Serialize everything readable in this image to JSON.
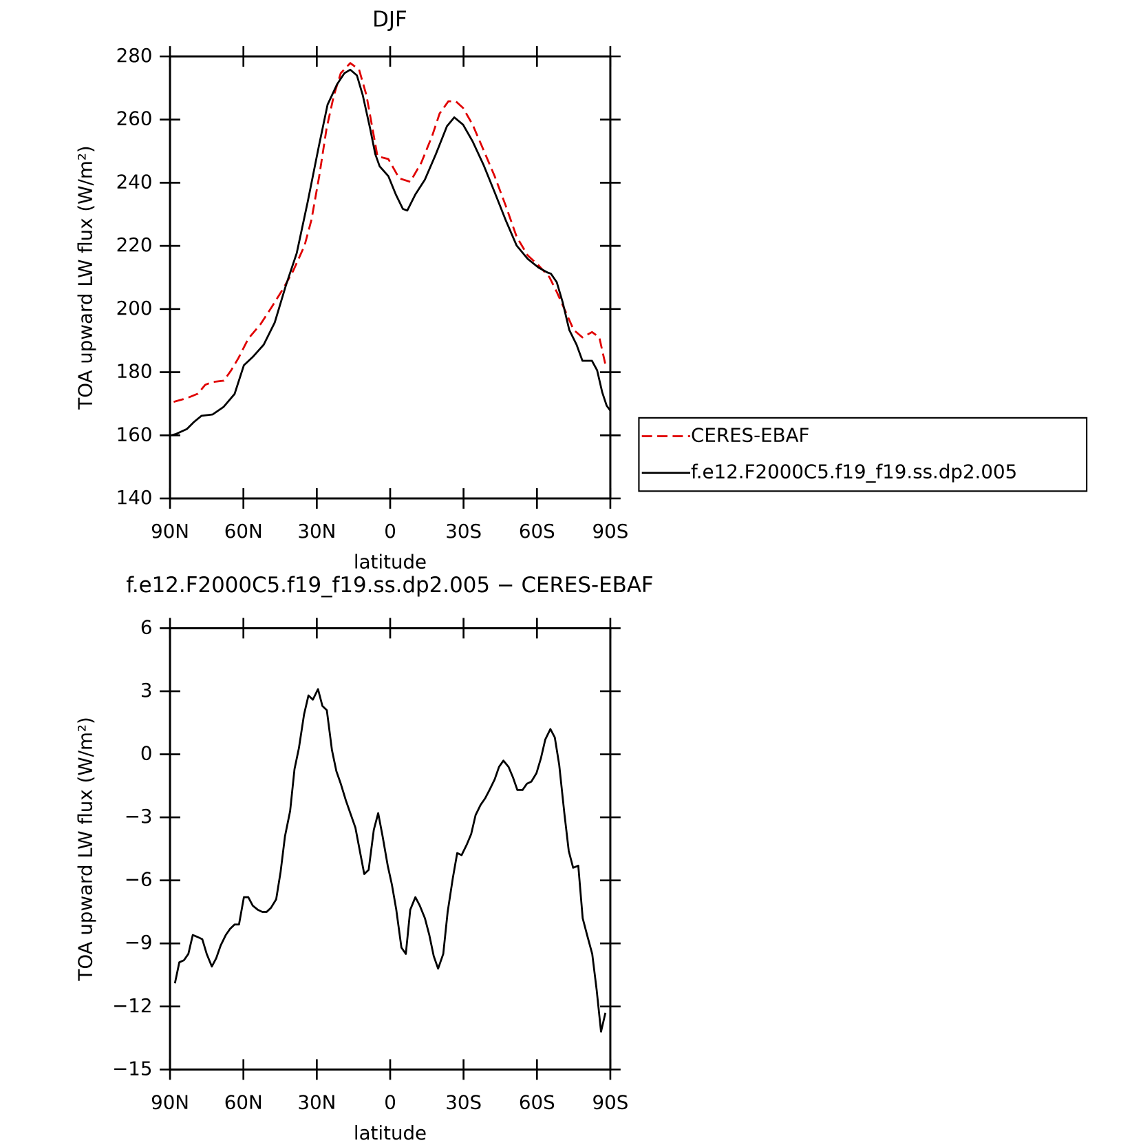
{
  "chart_data": [
    {
      "type": "line",
      "title": "DJF",
      "xlabel": "latitude",
      "ylabel": "TOA upward LW flux (W/m²)",
      "xlim": [
        90,
        -90
      ],
      "ylim": [
        140,
        280
      ],
      "xticks": [
        {
          "value": 90,
          "label": "90N"
        },
        {
          "value": 60,
          "label": "60N"
        },
        {
          "value": 30,
          "label": "30N"
        },
        0,
        {
          "value": -30,
          "label": "30S"
        },
        {
          "value": -60,
          "label": "60S"
        },
        {
          "value": -90,
          "label": "90S"
        }
      ],
      "yticks": [
        140,
        160,
        180,
        200,
        220,
        240,
        260,
        280
      ],
      "legend": "outside-right",
      "series": [
        {
          "name": "CERES-EBAF",
          "color": "#e00000",
          "dash": "dashed",
          "x": [
            88.5,
            83,
            78.6,
            75.6,
            72.6,
            68,
            65,
            62,
            58,
            53,
            48.7,
            44,
            39.7,
            35,
            32.2,
            29,
            26,
            23,
            20.2,
            16.3,
            12.7,
            9.7,
            6.7,
            5.2,
            0.75,
            -3.7,
            -8.2,
            -12.7,
            -17.2,
            -20.2,
            -23.8,
            -26.8,
            -29.8,
            -33.7,
            -38.2,
            -42.7,
            -47.2,
            -51.7,
            -56.2,
            -60.7,
            -65.1,
            -68.1,
            -71.7,
            -75,
            -78.6,
            -82.5,
            -85.5,
            -88.2
          ],
          "values": [
            170.6,
            171.8,
            173.2,
            176,
            176.9,
            177.3,
            180.6,
            184.5,
            190.6,
            195.2,
            200.3,
            206.1,
            212,
            220.1,
            228.2,
            242.1,
            257.2,
            267.7,
            274.7,
            277.9,
            275.8,
            267.7,
            254.9,
            248.4,
            247.5,
            241.4,
            240.3,
            246.3,
            254.9,
            261.9,
            265.8,
            265.8,
            263.7,
            258.4,
            250.3,
            242.1,
            232.8,
            222.9,
            217,
            213.8,
            210.1,
            205.4,
            199.2,
            193.4,
            191,
            192.7,
            191,
            181.7
          ]
        },
        {
          "name": "f.e12.F2000C5.f19_f19.ss.dp2.005",
          "color": "#000000",
          "dash": "solid",
          "x": [
            90,
            87.6,
            83.1,
            80.1,
            77.1,
            72.6,
            68.1,
            63.6,
            59.8,
            56.2,
            51.7,
            47.2,
            42.7,
            38.2,
            33.7,
            29.2,
            25.6,
            21.7,
            18.7,
            16.3,
            13.6,
            11.2,
            8.2,
            6.1,
            4.3,
            0.75,
            -2.3,
            -5.2,
            -7,
            -10.3,
            -14.2,
            -18.7,
            -23.2,
            -26.2,
            -29.8,
            -33.7,
            -38.2,
            -42.7,
            -47.2,
            -51.7,
            -56.2,
            -60.7,
            -64.5,
            -65.7,
            -68.1,
            -70.5,
            -73.2,
            -76.2,
            -78.6,
            -82.5,
            -84.6,
            -86.7,
            -88.5,
            -90
          ],
          "values": [
            159.9,
            160.4,
            162,
            164.3,
            166.2,
            166.6,
            169,
            173.1,
            182.2,
            184.8,
            188.7,
            195.7,
            207.3,
            217.7,
            234,
            251.4,
            264.7,
            271.2,
            274.7,
            275.8,
            274,
            267.7,
            257.2,
            249.1,
            245.2,
            242.1,
            236.3,
            231.7,
            231.2,
            236.3,
            241,
            249.1,
            257.9,
            260.7,
            258.4,
            253.1,
            245.6,
            237,
            228.2,
            220.1,
            215.9,
            213.1,
            211.5,
            211.2,
            208.5,
            202.2,
            193.4,
            188.7,
            183.6,
            183.6,
            180.6,
            173.6,
            169.4,
            167.8
          ]
        }
      ]
    },
    {
      "type": "line",
      "title": "f.e12.F2000C5.f19_f19.ss.dp2.005 − CERES-EBAF",
      "xlabel": "latitude",
      "ylabel": "TOA upward LW flux (W/m²)",
      "xlim": [
        90,
        -90
      ],
      "ylim": [
        -15,
        6
      ],
      "xticks": [
        {
          "value": 90,
          "label": "90N"
        },
        {
          "value": 60,
          "label": "60N"
        },
        {
          "value": 30,
          "label": "30N"
        },
        0,
        {
          "value": -30,
          "label": "30S"
        },
        {
          "value": -60,
          "label": "60S"
        },
        {
          "value": -90,
          "label": "90S"
        }
      ],
      "yticks": [
        {
          "value": -15,
          "label": "−15"
        },
        {
          "value": -12,
          "label": "−12"
        },
        {
          "value": -9,
          "label": "−9"
        },
        {
          "value": -6,
          "label": "−6"
        },
        {
          "value": -3,
          "label": "−3"
        },
        0,
        3,
        6
      ],
      "color": "#000000",
      "x": [
        88,
        86.2,
        84.3,
        82.5,
        80.7,
        78.6,
        76.8,
        75,
        72.9,
        71.1,
        69.3,
        67.2,
        65.4,
        63.6,
        61.8,
        59.8,
        58,
        56.2,
        54.1,
        52.3,
        50.5,
        48.7,
        46.6,
        44.8,
        43,
        40.9,
        39.1,
        37.3,
        35.2,
        33.4,
        31.6,
        29.5,
        27.7,
        25.9,
        23.8,
        22,
        20.2,
        18.1,
        16.3,
        14.2,
        12.4,
        10.6,
        8.8,
        6.7,
        4.9,
        3.1,
        1,
        -0.7,
        -2.5,
        -4.6,
        -6.4,
        -8.2,
        -10.3,
        -12.1,
        -14.2,
        -16,
        -17.8,
        -19.6,
        -21.7,
        -23.5,
        -25.6,
        -27.4,
        -29.2,
        -31.3,
        -33.1,
        -34.9,
        -37,
        -38.8,
        -40.6,
        -42.7,
        -44.5,
        -46.3,
        -48.4,
        -50.2,
        -52,
        -54.1,
        -55.9,
        -57.7,
        -59.8,
        -61.6,
        -63.4,
        -65.5,
        -67.3,
        -69.1,
        -71.2,
        -73,
        -74.8,
        -76.9,
        -78.7,
        -80.5,
        -82.6,
        -84.4,
        -86.2,
        -88
      ],
      "values": [
        -10.9,
        -9.9,
        -9.8,
        -9.5,
        -8.6,
        -8.7,
        -8.8,
        -9.5,
        -10.1,
        -9.7,
        -9.1,
        -8.6,
        -8.3,
        -8.1,
        -8.1,
        -6.8,
        -6.8,
        -7.2,
        -7.4,
        -7.5,
        -7.5,
        -7.3,
        -6.9,
        -5.6,
        -3.9,
        -2.7,
        -0.7,
        0.3,
        1.9,
        2.8,
        2.6,
        3.1,
        2.3,
        2.1,
        0.2,
        -0.8,
        -1.4,
        -2.2,
        -2.8,
        -3.5,
        -4.6,
        -5.7,
        -5.5,
        -3.6,
        -2.8,
        -3.9,
        -5.3,
        -6.2,
        -7.4,
        -9.2,
        -9.5,
        -7.4,
        -6.8,
        -7.2,
        -7.8,
        -8.6,
        -9.6,
        -10.2,
        -9.5,
        -7.5,
        -5.9,
        -4.7,
        -4.8,
        -4.3,
        -3.8,
        -2.9,
        -2.4,
        -2.1,
        -1.7,
        -1.2,
        -0.6,
        -0.3,
        -0.6,
        -1.1,
        -1.7,
        -1.7,
        -1.4,
        -1.3,
        -0.9,
        -0.2,
        0.7,
        1.2,
        0.8,
        -0.5,
        -2.8,
        -4.6,
        -5.4,
        -5.3,
        -7.8,
        -8.6,
        -9.5,
        -11.2,
        -13.2,
        -12.3
      ]
    }
  ]
}
